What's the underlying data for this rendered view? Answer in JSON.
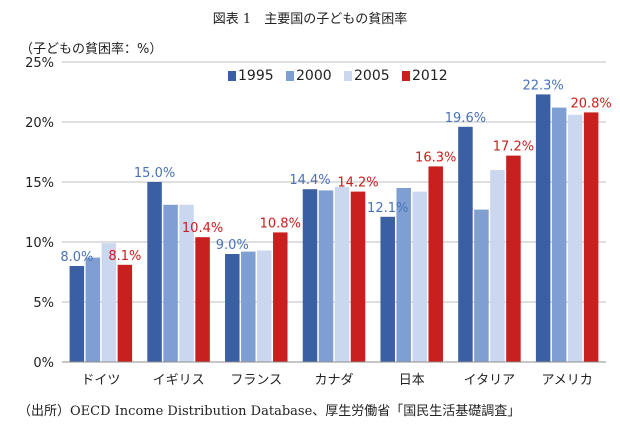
{
  "chart_data": {
    "type": "bar",
    "title": "図表 1　主要国の子どもの貧困率",
    "ylabel": "（子どもの貧困率：%）",
    "source": "（出所）OECD Income Distribution Database、厚生労働省「国民生活基礎調査」",
    "categories": [
      "ドイツ",
      "イギリス",
      "フランス",
      "カナダ",
      "日本",
      "イタリア",
      "アメリカ"
    ],
    "ylim": [
      0,
      25
    ],
    "yticks": [
      0,
      5,
      10,
      15,
      20,
      25
    ],
    "ytick_labels": [
      "0%",
      "5%",
      "10%",
      "15%",
      "20%",
      "25%"
    ],
    "grid": true,
    "legend_position": "top",
    "series": [
      {
        "name": "1995",
        "color": "#3a5fa3",
        "values": [
          8.0,
          15.0,
          9.0,
          14.4,
          12.1,
          19.6,
          22.3
        ]
      },
      {
        "name": "2000",
        "color": "#7f9fd2",
        "values": [
          8.7,
          13.1,
          9.2,
          14.3,
          14.5,
          12.7,
          21.2
        ]
      },
      {
        "name": "2005",
        "color": "#cbd7ee",
        "values": [
          9.9,
          13.1,
          9.3,
          14.6,
          14.2,
          16.0,
          20.6
        ]
      },
      {
        "name": "2012",
        "color": "#c8201e",
        "values": [
          8.1,
          10.4,
          10.8,
          14.2,
          16.3,
          17.2,
          20.8
        ]
      }
    ],
    "data_labels": [
      {
        "category": 0,
        "series": 0,
        "text": "8.0%",
        "color": "#4a72b8"
      },
      {
        "category": 0,
        "series": 3,
        "text": "8.1%",
        "color": "#c8201e"
      },
      {
        "category": 1,
        "series": 0,
        "text": "15.0%",
        "color": "#4a72b8"
      },
      {
        "category": 1,
        "series": 3,
        "text": "10.4%",
        "color": "#c8201e"
      },
      {
        "category": 2,
        "series": 0,
        "text": "9.0%",
        "color": "#4a72b8"
      },
      {
        "category": 2,
        "series": 3,
        "text": "10.8%",
        "color": "#c8201e"
      },
      {
        "category": 3,
        "series": 0,
        "text": "14.4%",
        "color": "#4a72b8"
      },
      {
        "category": 3,
        "series": 3,
        "text": "14.2%",
        "color": "#c8201e"
      },
      {
        "category": 4,
        "series": 0,
        "text": "12.1%",
        "color": "#4a72b8"
      },
      {
        "category": 4,
        "series": 3,
        "text": "16.3%",
        "color": "#c8201e"
      },
      {
        "category": 5,
        "series": 0,
        "text": "19.6%",
        "color": "#4a72b8"
      },
      {
        "category": 5,
        "series": 3,
        "text": "17.2%",
        "color": "#c8201e"
      },
      {
        "category": 6,
        "series": 0,
        "text": "22.3%",
        "color": "#4a72b8"
      },
      {
        "category": 6,
        "series": 3,
        "text": "20.8%",
        "color": "#c8201e"
      }
    ]
  }
}
